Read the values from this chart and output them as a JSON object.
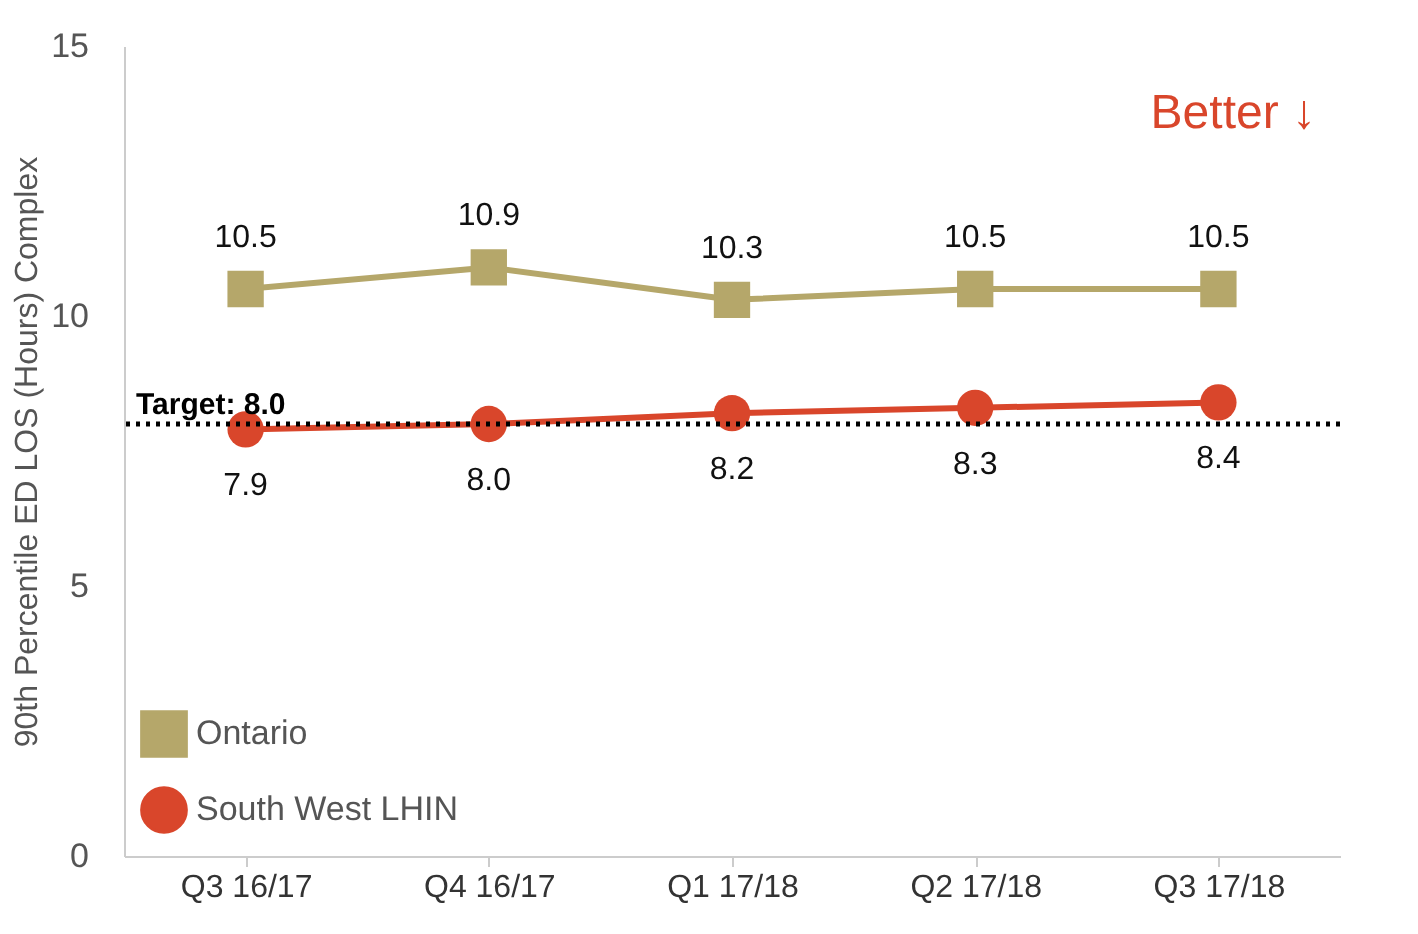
{
  "chart_data": {
    "type": "line",
    "ylabel": "90th Percentile ED LOS (Hours) Complex",
    "categories": [
      "Q3 16/17",
      "Q4 16/17",
      "Q1 17/18",
      "Q2 17/18",
      "Q3 17/18"
    ],
    "series": [
      {
        "name": "Ontario",
        "color": "#b5a76a",
        "marker": "square",
        "values": [
          10.5,
          10.9,
          10.3,
          10.5,
          10.5
        ],
        "value_labels": [
          "10.5",
          "10.9",
          "10.3",
          "10.5",
          "10.5"
        ]
      },
      {
        "name": "South West LHIN",
        "color": "#d9462b",
        "marker": "circle",
        "values": [
          7.9,
          8.0,
          8.2,
          8.3,
          8.4
        ],
        "value_labels": [
          "7.9",
          "8.0",
          "8.2",
          "8.3",
          "8.4"
        ]
      }
    ],
    "ylim": [
      0,
      15
    ],
    "yticks": [
      0,
      5,
      10,
      15
    ],
    "legend": "bottom left",
    "ref_lines": [
      {
        "axis": "y",
        "value": 8.0,
        "label": "Target: 8.0",
        "line_style": "dotted",
        "color": "#000000"
      }
    ],
    "annotations": [
      "Better ↓"
    ]
  }
}
